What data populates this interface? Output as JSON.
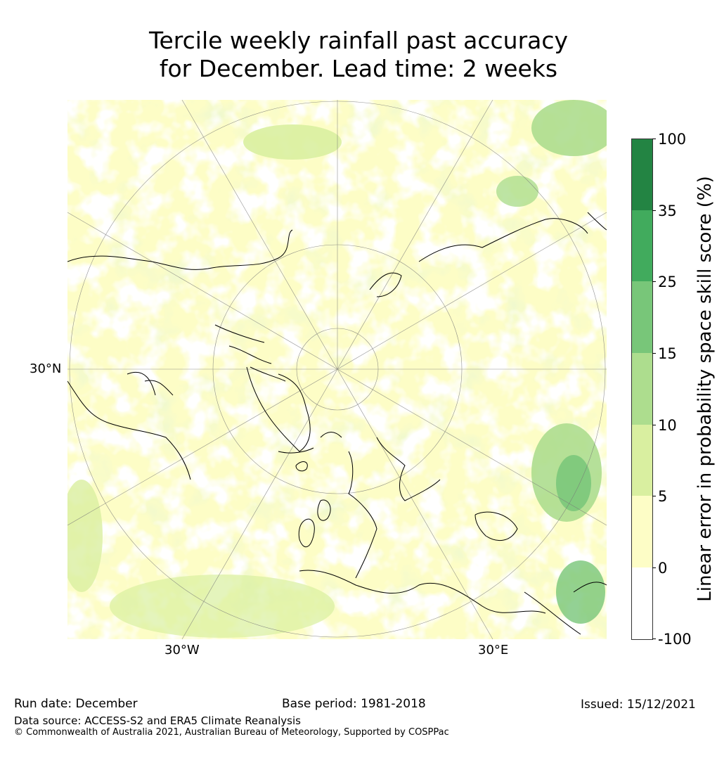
{
  "title": {
    "line1": "Tercile weekly rainfall past accuracy",
    "line2": "for December. Lead time: 2 weeks"
  },
  "map": {
    "graticule_labels": {
      "lat_30n": "30°N",
      "lon_30w": "30°W",
      "lon_30e": "30°E"
    }
  },
  "colorbar": {
    "label": "Linear error in probability space skill score (%)",
    "ticks": [
      "100",
      "35",
      "25",
      "15",
      "10",
      "5",
      "0",
      "-100"
    ],
    "colors": [
      "#ffffff",
      "#fdfdc6",
      "#d9efa0",
      "#addd8e",
      "#78c679",
      "#41ab5d",
      "#238443"
    ]
  },
  "footer": {
    "run_date": "Run date: December",
    "base_period": "Base period: 1981-2018",
    "issued": "Issued: 15/12/2021",
    "data_source": "Data source: ACCESS-S2 and ERA5 Climate Reanalysis",
    "copyright": "© Commonwealth of Australia 2021, Australian Bureau of Meteorology, Supported by COSPPac"
  }
}
